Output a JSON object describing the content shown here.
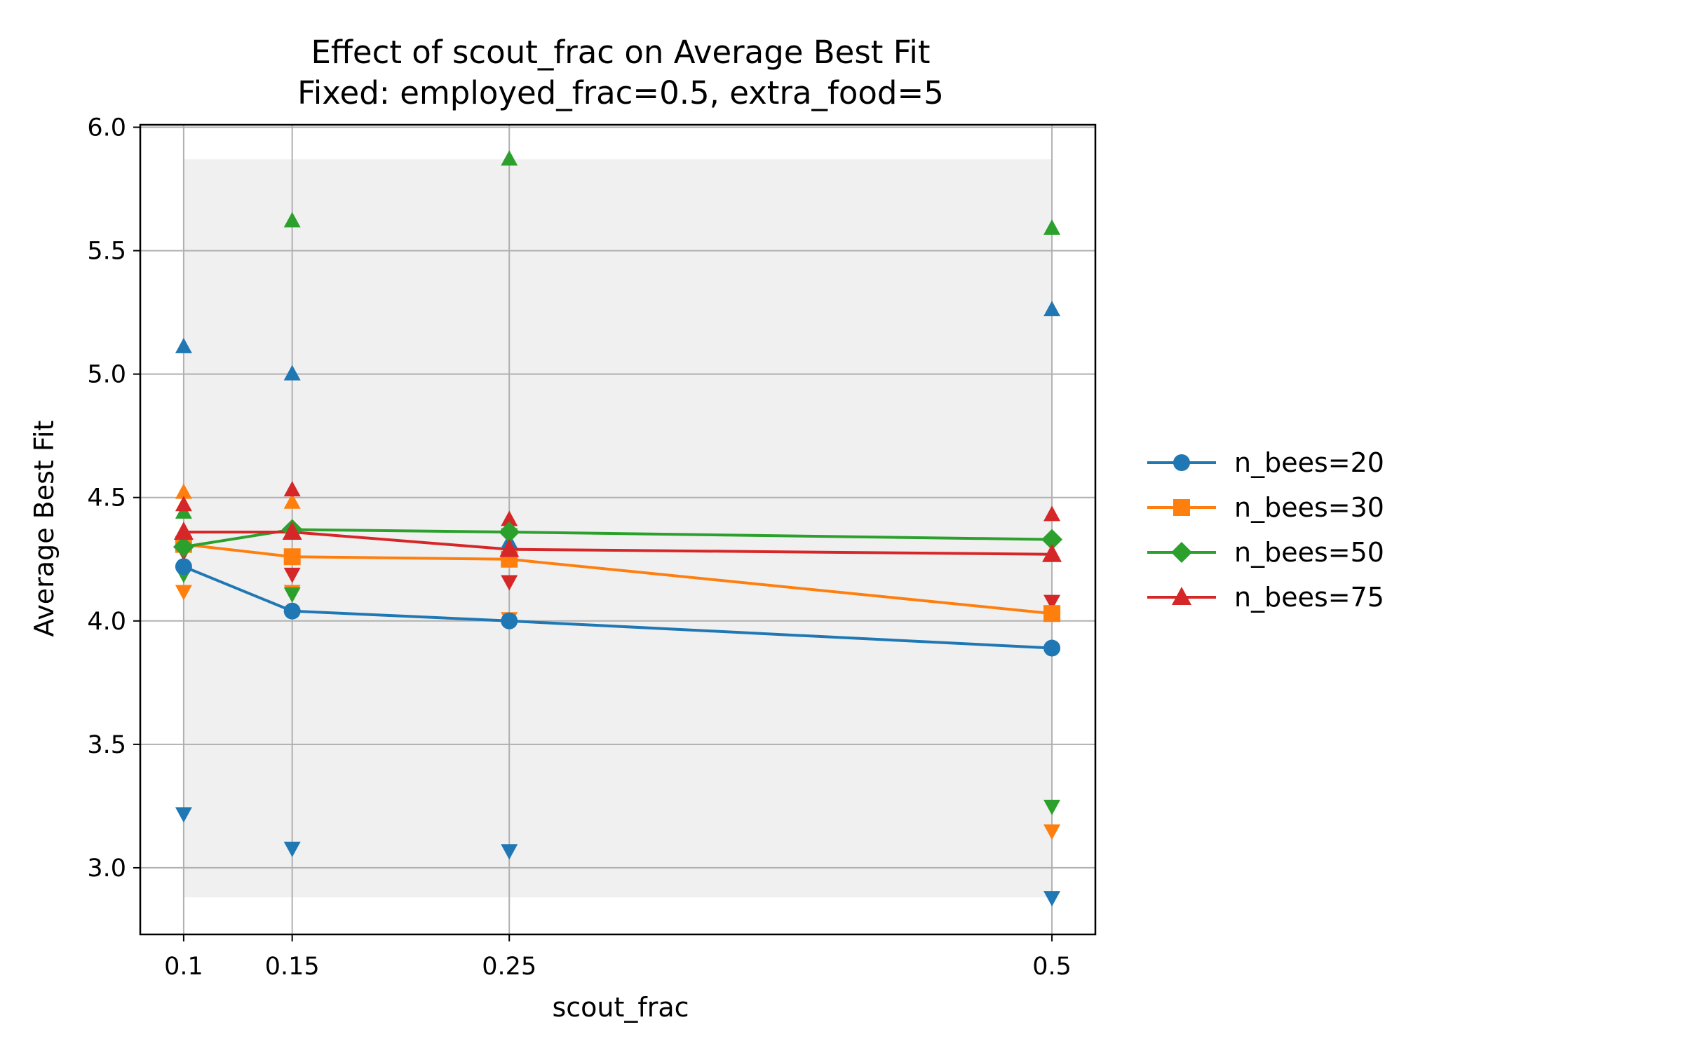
{
  "chart_data": {
    "type": "line",
    "title_line1": "Effect of scout_frac on Average Best Fit",
    "title_line2": "Fixed: employed_frac=0.5, extra_food=5",
    "xlabel": "scout_frac",
    "ylabel": "Average Best Fit",
    "x": [
      0.1,
      0.15,
      0.25,
      0.5
    ],
    "x_tick_labels": [
      "0.1",
      "0.15",
      "0.25",
      "0.5"
    ],
    "xlim": [
      0.08,
      0.52
    ],
    "ylim": [
      2.73,
      6.01
    ],
    "y_ticks": [
      3.0,
      3.5,
      4.0,
      4.5,
      5.0,
      5.5,
      6.0
    ],
    "y_tick_labels": [
      "3.0",
      "3.5",
      "4.0",
      "4.5",
      "5.0",
      "5.5",
      "6.0"
    ],
    "grid": true,
    "legend_position": "right, outside plot",
    "shaded_band": {
      "x": [
        0.1,
        0.5
      ],
      "y": [
        2.88,
        5.87
      ],
      "color": "#f0f0f0"
    },
    "series": [
      {
        "name": "n_bees=20",
        "color": "#1f77b4",
        "marker": "circle",
        "values": [
          4.22,
          4.04,
          4.0,
          3.89
        ],
        "max": [
          5.11,
          5.0,
          4.32,
          5.26
        ],
        "min": [
          3.22,
          3.08,
          3.07,
          2.88
        ]
      },
      {
        "name": "n_bees=30",
        "color": "#ff7f0e",
        "marker": "square",
        "values": [
          4.31,
          4.26,
          4.25,
          4.03
        ],
        "max": [
          4.52,
          4.48,
          4.38,
          4.03
        ],
        "min": [
          4.12,
          4.12,
          4.01,
          3.15
        ]
      },
      {
        "name": "n_bees=50",
        "color": "#2ca02c",
        "marker": "diamond",
        "values": [
          4.3,
          4.37,
          4.36,
          4.33
        ],
        "max": [
          4.44,
          5.62,
          5.87,
          5.59
        ],
        "min": [
          4.19,
          4.11,
          4.35,
          3.25
        ]
      },
      {
        "name": "n_bees=75",
        "color": "#d62728",
        "marker": "triangle",
        "values": [
          4.36,
          4.36,
          4.29,
          4.27
        ],
        "max": [
          4.47,
          4.53,
          4.41,
          4.43
        ],
        "min": [
          4.28,
          4.19,
          4.16,
          4.08
        ]
      }
    ]
  }
}
